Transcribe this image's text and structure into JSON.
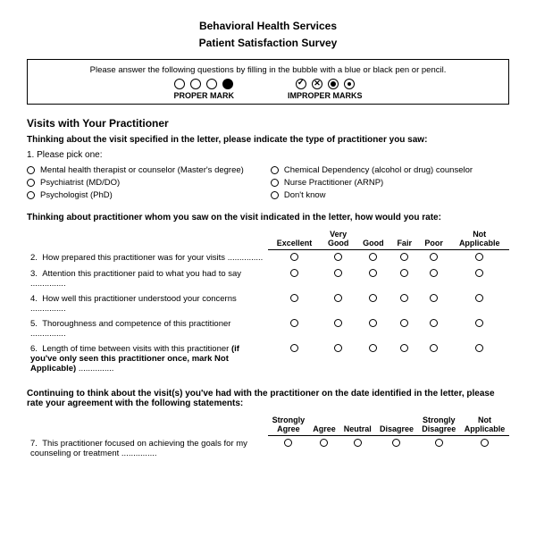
{
  "title": {
    "line1": "Behavioral Health Services",
    "line2": "Patient Satisfaction Survey"
  },
  "instruction_box": {
    "text": "Please answer the following questions by filling in the bubble with a blue or black pen or pencil.",
    "proper_label": "PROPER MARK",
    "improper_label": "IMPROPER MARKS"
  },
  "section1": {
    "header": "Visits with Your Practitioner",
    "intro": "Thinking about the visit specified in the letter, please indicate the type of practitioner you saw:",
    "q1_prompt": "1.   Please pick one:",
    "options_left": [
      "Mental health therapist or counselor (Master's degree)",
      "Psychiatrist (MD/DO)",
      "Psychologist (PhD)"
    ],
    "options_right": [
      "Chemical Dependency (alcohol or drug) counselor",
      "Nurse Practitioner (ARNP)",
      "Don't know"
    ]
  },
  "rating_block": {
    "intro": "Thinking about practitioner whom you saw on the visit indicated in the letter, how would you rate:",
    "headers": [
      "Excellent",
      "Very Good",
      "Good",
      "Fair",
      "Poor",
      "Not Applicable"
    ],
    "rows": [
      {
        "num": "2.",
        "text": "How prepared this practitioner was for your visits",
        "note": ""
      },
      {
        "num": "3.",
        "text": "Attention this practitioner paid to what you had to say",
        "note": ""
      },
      {
        "num": "4.",
        "text": "How well this practitioner understood your concerns",
        "note": ""
      },
      {
        "num": "5.",
        "text": "Thoroughness and competence of this practitioner",
        "note": ""
      },
      {
        "num": "6.",
        "text": "Length of time between visits with this practitioner ",
        "note": "(if you've only seen this practitioner once, mark Not Applicable)"
      }
    ]
  },
  "agree_block": {
    "intro": "Continuing to think about the visit(s) you've had with the practitioner on the date identified in the letter, please rate your agreement with the following statements:",
    "headers": [
      "Strongly Agree",
      "Agree",
      "Neutral",
      "Disagree",
      "Strongly Disagree",
      "Not Applicable"
    ],
    "rows": [
      {
        "num": "7.",
        "text": "This practitioner focused on achieving the goals for my counseling or treatment"
      }
    ]
  }
}
